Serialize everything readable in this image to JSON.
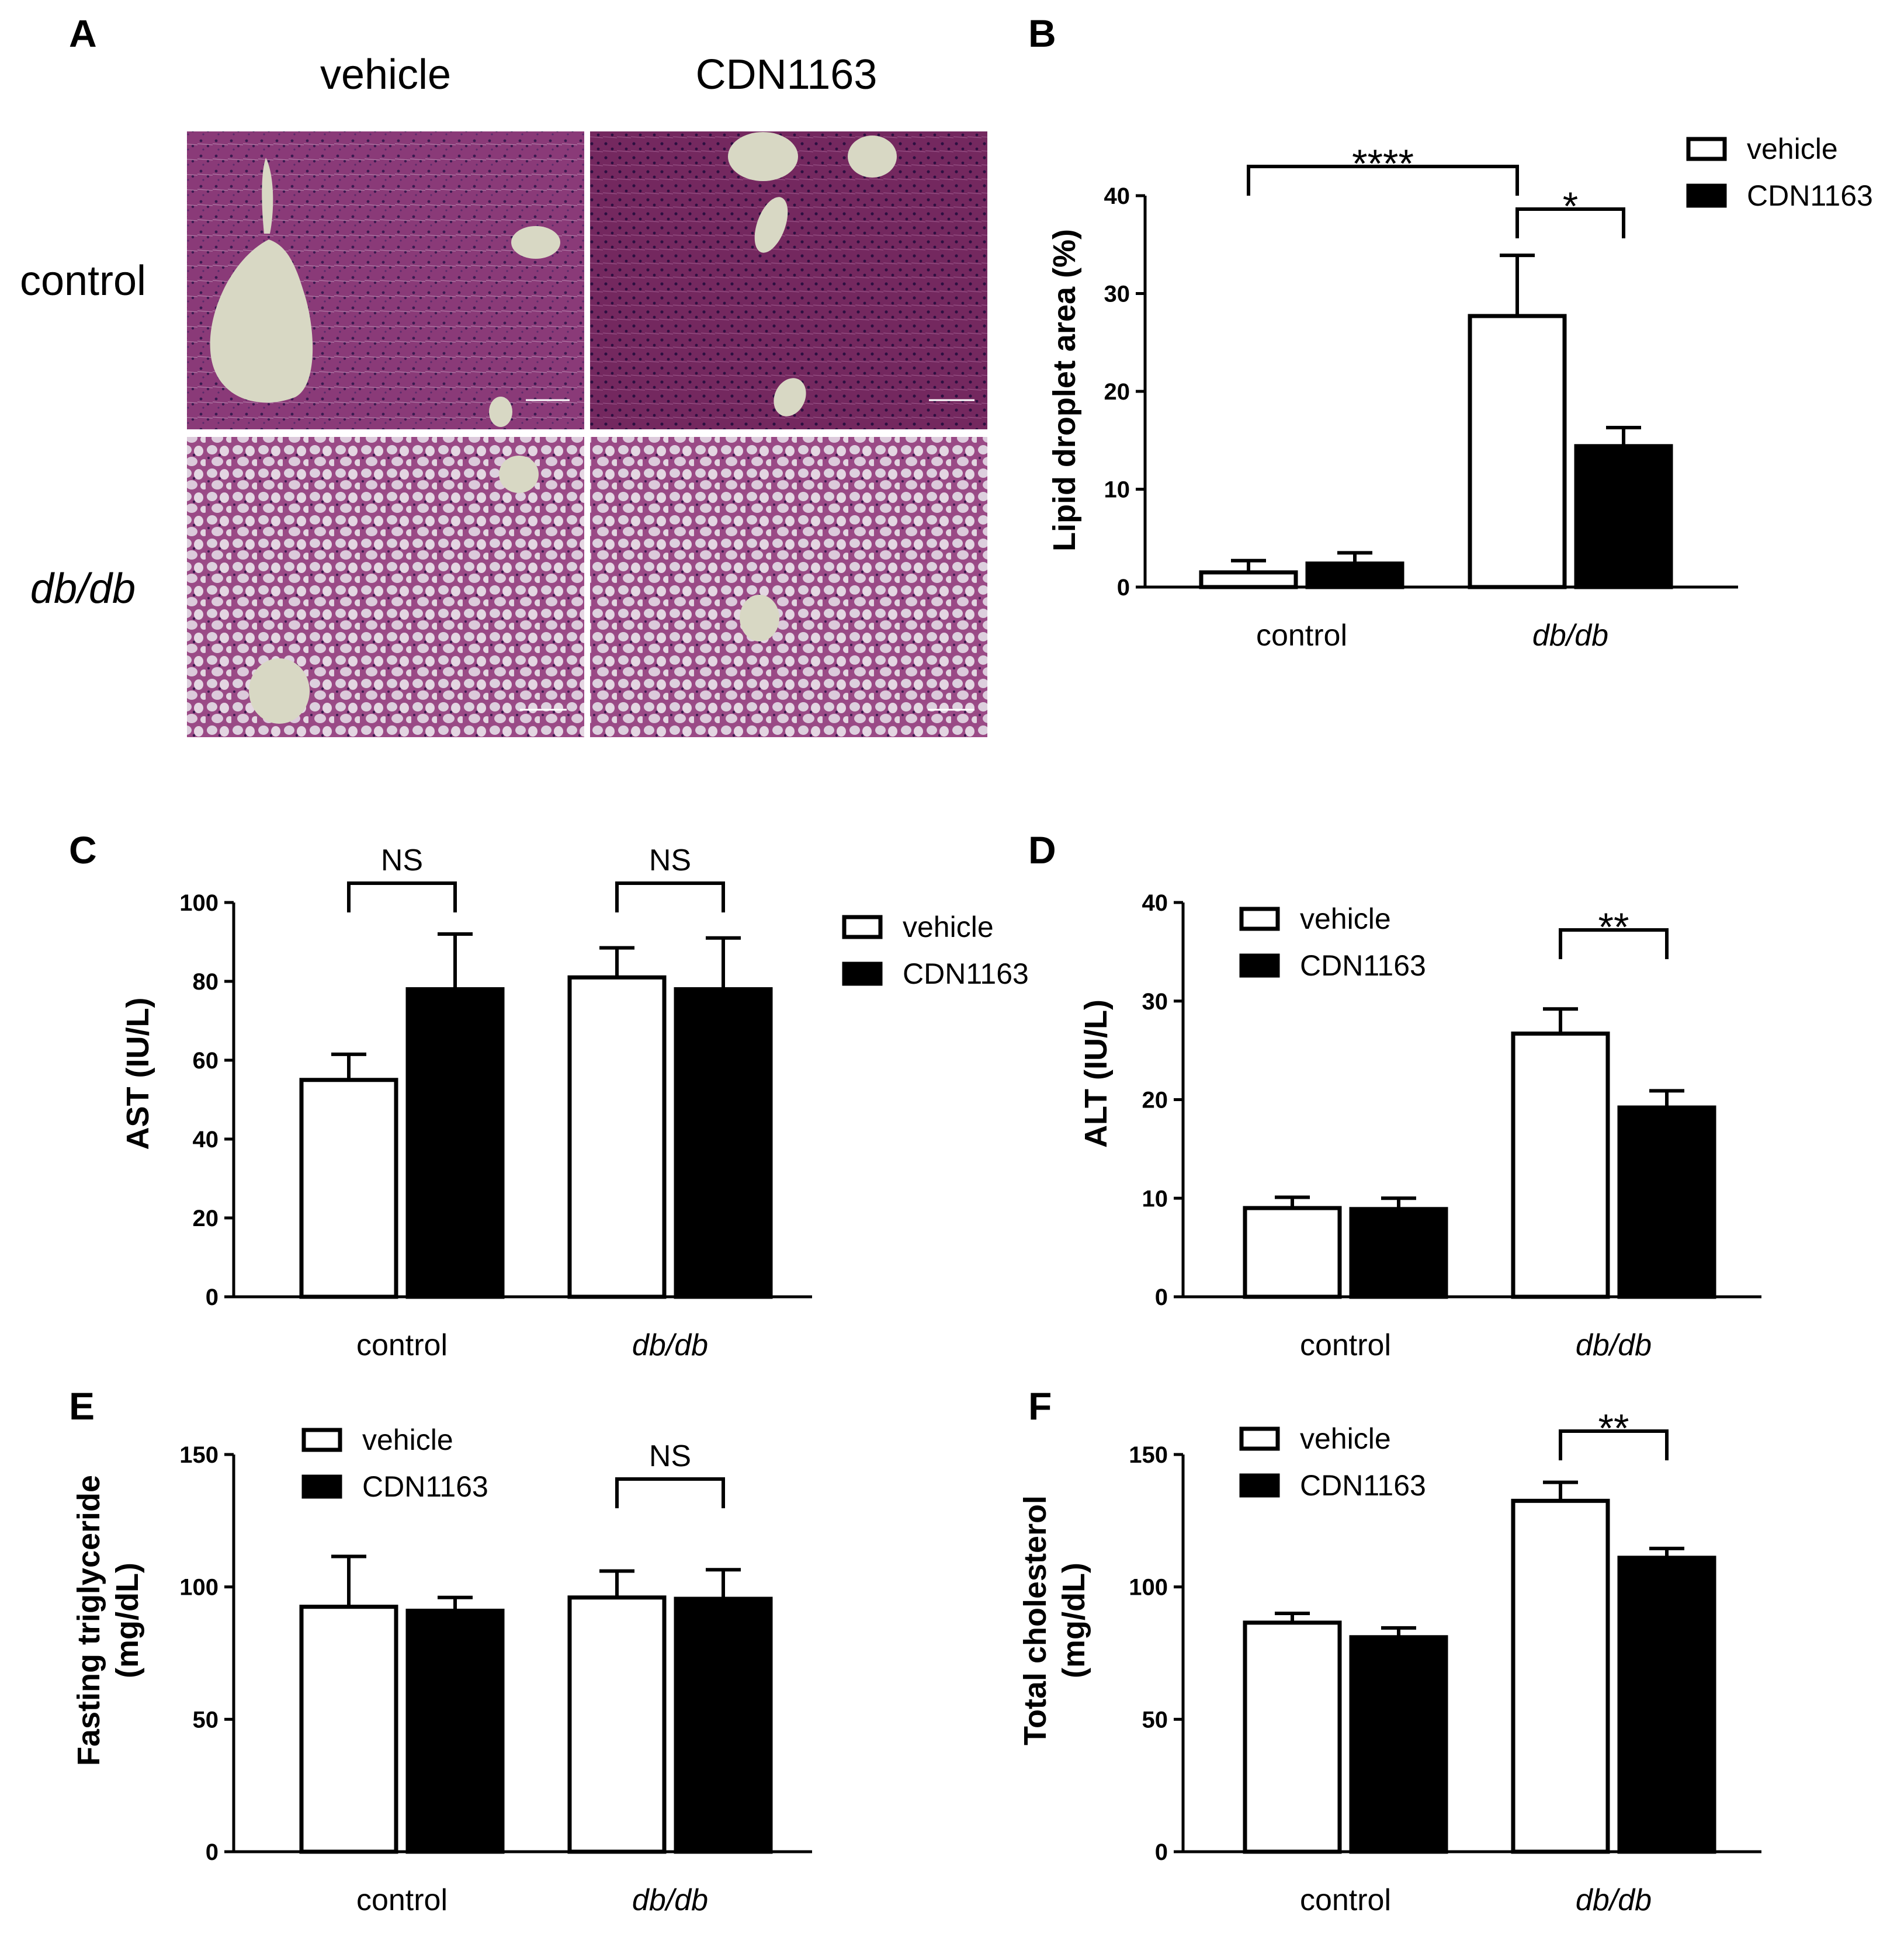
{
  "panel_a": {
    "letter": "A",
    "columns": [
      "vehicle",
      "CDN1163"
    ],
    "rows": [
      "control",
      "db/db"
    ],
    "colors": {
      "tissue": "#8a3a78",
      "vessel": "#d8d8c4",
      "fat": "#ddd0de",
      "nucleus": "#3a1a50"
    }
  },
  "legend": {
    "items": [
      "vehicle",
      "CDN1163"
    ],
    "colors": [
      "#ffffff",
      "#000000"
    ]
  },
  "categories": [
    "control",
    "db/db"
  ],
  "chart_data": [
    {
      "id": "B",
      "letter": "B",
      "type": "bar",
      "ylabel": [
        "Lipid droplet area (%)"
      ],
      "ylim": [
        0,
        40
      ],
      "yticks": [
        0,
        10,
        20,
        30,
        40
      ],
      "categories": [
        "control",
        "db/db"
      ],
      "series": [
        {
          "name": "vehicle",
          "values": [
            1.5,
            27.7
          ],
          "errors": [
            1.2,
            6.2
          ]
        },
        {
          "name": "CDN1163",
          "values": [
            2.4,
            14.4
          ],
          "errors": [
            1.1,
            1.9
          ]
        }
      ],
      "significance": [
        {
          "label": "****",
          "between": "control-vehicle vs db/db-vehicle"
        },
        {
          "label": "*",
          "between": "db/db-vehicle vs db/db-CDN1163"
        }
      ],
      "legend_position": "top-right"
    },
    {
      "id": "C",
      "letter": "C",
      "type": "bar",
      "ylabel": [
        "AST (IU/L)"
      ],
      "ylim": [
        0,
        100
      ],
      "yticks": [
        0,
        20,
        40,
        60,
        80,
        100
      ],
      "categories": [
        "control",
        "db/db"
      ],
      "series": [
        {
          "name": "vehicle",
          "values": [
            55,
            81
          ],
          "errors": [
            6.5,
            7.5
          ]
        },
        {
          "name": "CDN1163",
          "values": [
            78,
            78
          ],
          "errors": [
            14,
            13
          ]
        }
      ],
      "significance": [
        {
          "label": "NS",
          "between": "control-vehicle vs control-CDN1163"
        },
        {
          "label": "NS",
          "between": "db/db-vehicle vs db/db-CDN1163"
        }
      ],
      "legend_position": "right"
    },
    {
      "id": "D",
      "letter": "D",
      "type": "bar",
      "ylabel": [
        "ALT (IU/L)"
      ],
      "ylim": [
        0,
        40
      ],
      "yticks": [
        0,
        10,
        20,
        30,
        40
      ],
      "categories": [
        "control",
        "db/db"
      ],
      "series": [
        {
          "name": "vehicle",
          "values": [
            9,
            26.7
          ],
          "errors": [
            1.1,
            2.5
          ]
        },
        {
          "name": "CDN1163",
          "values": [
            8.9,
            19.2
          ],
          "errors": [
            1.1,
            1.7
          ]
        }
      ],
      "significance": [
        {
          "label": "**",
          "between": "db/db-vehicle vs db/db-CDN1163"
        }
      ],
      "legend_position": "top-left"
    },
    {
      "id": "E",
      "letter": "E",
      "type": "bar",
      "ylabel": [
        "Fasting triglyceride",
        "(mg/dL)"
      ],
      "ylim": [
        0,
        150
      ],
      "yticks": [
        0,
        50,
        100,
        150
      ],
      "categories": [
        "control",
        "db/db"
      ],
      "series": [
        {
          "name": "vehicle",
          "values": [
            92.5,
            96
          ],
          "errors": [
            19,
            10
          ]
        },
        {
          "name": "CDN1163",
          "values": [
            91,
            95.5
          ],
          "errors": [
            5,
            11
          ]
        }
      ],
      "significance": [
        {
          "label": "NS",
          "between": "db/db-vehicle vs db/db-CDN1163"
        }
      ],
      "legend_position": "top-left"
    },
    {
      "id": "F",
      "letter": "F",
      "type": "bar",
      "ylabel": [
        "Total cholesterol",
        "(mg/dL)"
      ],
      "ylim": [
        0,
        150
      ],
      "yticks": [
        0,
        50,
        100,
        150
      ],
      "categories": [
        "control",
        "db/db"
      ],
      "series": [
        {
          "name": "vehicle",
          "values": [
            86.5,
            132.5
          ],
          "errors": [
            3.5,
            7
          ]
        },
        {
          "name": "CDN1163",
          "values": [
            81,
            111
          ],
          "errors": [
            3.5,
            3.5
          ]
        }
      ],
      "significance": [
        {
          "label": "**",
          "between": "db/db-vehicle vs db/db-CDN1163"
        }
      ],
      "legend_position": "top-left"
    }
  ]
}
